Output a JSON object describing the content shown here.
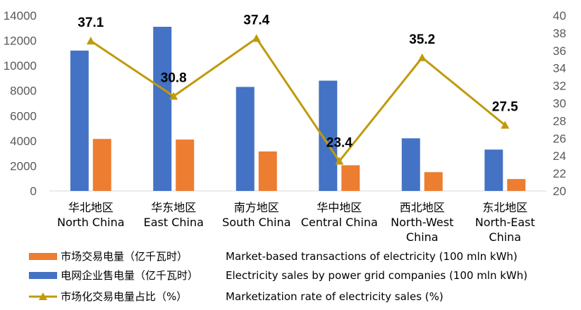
{
  "chart_data": {
    "type": "bar",
    "categories_zh": [
      "华北地区",
      "华东地区",
      "南方地区",
      "华中地区",
      "西北地区",
      "东北地区"
    ],
    "categories_en": [
      [
        "North China"
      ],
      [
        "East China"
      ],
      [
        "South China"
      ],
      [
        "Central China"
      ],
      [
        "North-West",
        "China"
      ],
      [
        "North-East",
        "China"
      ]
    ],
    "y_left": {
      "ylim": [
        0,
        14000
      ],
      "ticks": [
        "0",
        "2000",
        "4000",
        "6000",
        "8000",
        "10000",
        "12000",
        "14000"
      ]
    },
    "y_right": {
      "ylim": [
        20,
        40
      ],
      "ticks": [
        "20",
        "22",
        "24",
        "26",
        "28",
        "30",
        "32",
        "34",
        "36",
        "38",
        "40"
      ]
    },
    "series": [
      {
        "name_zh": "电网企业售电量（亿千瓦时）",
        "name_en": "Electricity sales by power grid companies (100 mln kWh)",
        "kind": "bar",
        "axis": "left",
        "color": "#4472C4",
        "values": [
          11200,
          13100,
          8300,
          8800,
          4200,
          3300
        ]
      },
      {
        "name_zh": "市场交易电量（亿千瓦时）",
        "name_en": "Market-based transactions of electricity (100 mln kWh)",
        "kind": "bar",
        "axis": "left",
        "color": "#ED7D31",
        "values": [
          4150,
          4100,
          3150,
          2050,
          1500,
          950
        ]
      },
      {
        "name_zh": "市场化交易电量占比（%）",
        "name_en": "Marketization rate of electricity sales (%)",
        "kind": "line",
        "axis": "right",
        "color": "#C09A0B",
        "values": [
          37.1,
          30.8,
          37.4,
          23.4,
          35.2,
          27.5
        ],
        "labels": [
          "37.1",
          "30.8",
          "37.4",
          "23.4",
          "35.2",
          "27.5"
        ]
      }
    ],
    "legend_order": [
      1,
      0,
      2
    ],
    "legend_position": "bottom",
    "grid": false
  }
}
